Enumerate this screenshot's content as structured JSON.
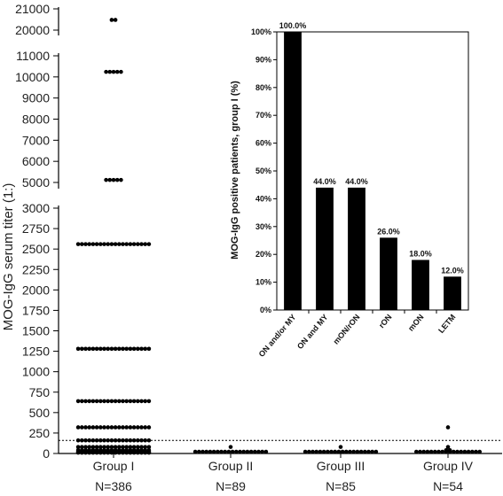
{
  "chart_data": [
    {
      "type": "scatter",
      "title": "",
      "ylabel": "MOG-IgG serum titer (1:)",
      "y_axis_segments": [
        {
          "range": [
            0,
            3000
          ],
          "ticks": [
            0,
            250,
            500,
            750,
            1000,
            1250,
            1500,
            1750,
            2000,
            2250,
            2500,
            2750,
            3000
          ]
        },
        {
          "range": [
            5000,
            11000
          ],
          "ticks": [
            5000,
            6000,
            7000,
            8000,
            9000,
            10000,
            11000
          ]
        },
        {
          "range": [
            20000,
            21000
          ],
          "ticks": [
            20000,
            21000
          ]
        }
      ],
      "cutoff_line": 160,
      "groups": [
        {
          "name": "Group I",
          "n_label": "N=386",
          "titers": [
            {
              "value": 20480,
              "count": 2
            },
            {
              "value": 10240,
              "count": 5
            },
            {
              "value": 5120,
              "count": 5
            },
            {
              "value": 2560,
              "count": 20
            },
            {
              "value": 1280,
              "count": 20
            },
            {
              "value": 640,
              "count": 20
            },
            {
              "value": 320,
              "count": 20
            },
            {
              "value": 160,
              "count": 20
            },
            {
              "value": 80,
              "count": 20
            },
            {
              "value": 40,
              "count": 20
            },
            {
              "value": 20,
              "count": 20
            },
            {
              "value": 10,
              "count": 20
            },
            {
              "value": 0,
              "count": 20
            }
          ]
        },
        {
          "name": "Group II",
          "n_label": "N=89",
          "titers": [
            {
              "value": 80,
              "count": 1
            },
            {
              "value": 0,
              "count": 20
            }
          ]
        },
        {
          "name": "Group III",
          "n_label": "N=85",
          "titers": [
            {
              "value": 80,
              "count": 1
            },
            {
              "value": 20,
              "count": 4
            },
            {
              "value": 0,
              "count": 20
            }
          ]
        },
        {
          "name": "Group IV",
          "n_label": "N=54",
          "titers": [
            {
              "value": 320,
              "count": 1
            },
            {
              "value": 80,
              "count": 1
            },
            {
              "value": 40,
              "count": 2
            },
            {
              "value": 0,
              "count": 18
            }
          ]
        }
      ]
    },
    {
      "type": "bar",
      "title": "",
      "ylabel": "MOG-IgG positive patients, group I (%)",
      "ylim": [
        0,
        100
      ],
      "yticks": [
        "0%",
        "10%",
        "20%",
        "30%",
        "40%",
        "50%",
        "60%",
        "70%",
        "80%",
        "90%",
        "100%"
      ],
      "categories": [
        "ON and/or MY",
        "ON and MY",
        "mON/rON",
        "rON",
        "mON",
        "LETM"
      ],
      "values": [
        100.0,
        44.0,
        44.0,
        26.0,
        18.0,
        12.0
      ],
      "value_labels": [
        "100.0%",
        "44.0%",
        "44.0%",
        "26.0%",
        "18.0%",
        "12.0%"
      ],
      "color": "#000000"
    }
  ]
}
